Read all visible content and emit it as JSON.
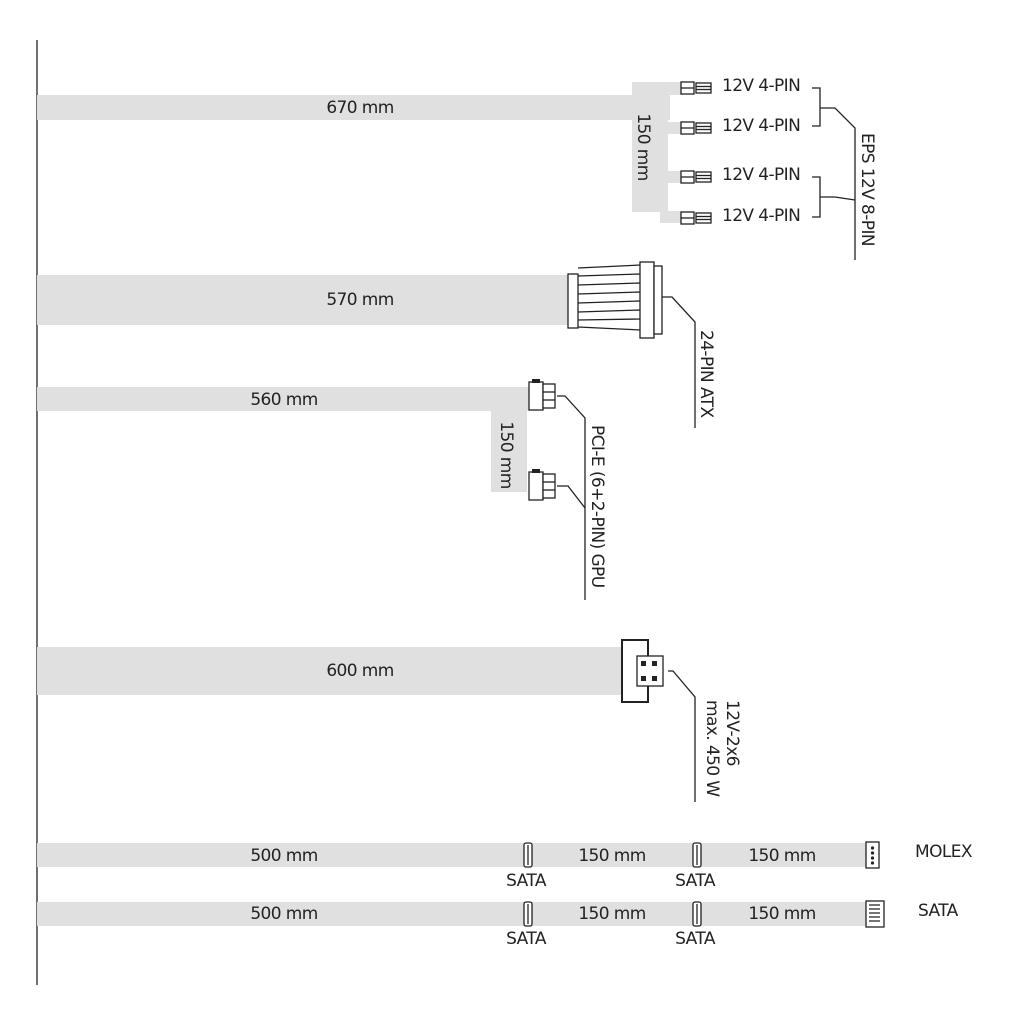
{
  "cables": [
    {
      "length": "670 mm",
      "branch_length": "150 mm",
      "connectors": [
        "12V 4-PIN",
        "12V 4-PIN",
        "12V 4-PIN",
        "12V 4-PIN"
      ],
      "label": "EPS 12V 8-PIN"
    },
    {
      "length": "570 mm",
      "label": "24-PIN ATX"
    },
    {
      "length": "560 mm",
      "branch_length": "150 mm",
      "label": "PCI-E (6+2-PIN) GPU"
    },
    {
      "length": "600 mm",
      "label": [
        "12V-2x6",
        "max. 450 W"
      ]
    },
    {
      "lengths": [
        "500 mm",
        "150 mm",
        "150 mm"
      ],
      "taps": [
        "SATA",
        "SATA"
      ],
      "label": "MOLEX"
    },
    {
      "lengths": [
        "500 mm",
        "150 mm",
        "150 mm"
      ],
      "taps": [
        "SATA",
        "SATA"
      ],
      "label": "SATA"
    }
  ]
}
